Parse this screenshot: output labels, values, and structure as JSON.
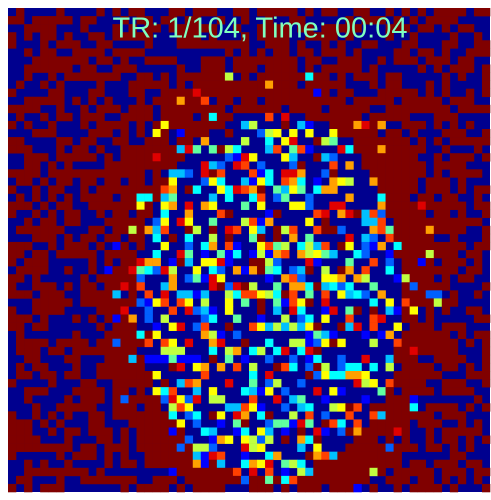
{
  "overlay": {
    "text": "TR: 1/104,  Time: 00:04"
  }
}
